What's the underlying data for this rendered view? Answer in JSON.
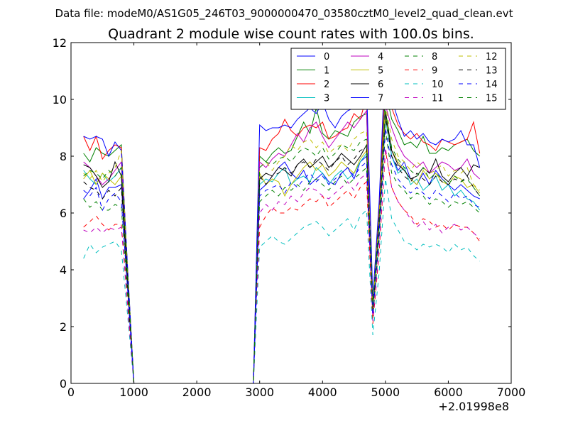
{
  "header": {
    "data_file": "Data file: modeM0/AS1G05_246T03_9000000470_03580cztM0_level2_quad_clean.evt"
  },
  "chart_data": {
    "type": "line",
    "title": "Quadrant 2 module wise count rates with 100.0s bins.",
    "xlabel": "",
    "ylabel": "",
    "x_offset_label": "+2.01998e8",
    "xlim": [
      0,
      7000
    ],
    "ylim": [
      0,
      12
    ],
    "xticks": [
      "0",
      "1000",
      "2000",
      "3000",
      "4000",
      "5000",
      "6000",
      "7000"
    ],
    "yticks": [
      "0",
      "2",
      "4",
      "6",
      "8",
      "10",
      "12"
    ],
    "grid": false,
    "legend_position": "top-right",
    "x": [
      200,
      300,
      400,
      500,
      600,
      700,
      800,
      900,
      1000,
      1100,
      1200,
      1300,
      1400,
      1500,
      1600,
      1700,
      1800,
      1900,
      2000,
      2100,
      2200,
      2300,
      2400,
      2500,
      2600,
      2700,
      2800,
      2900,
      3000,
      3100,
      3200,
      3300,
      3400,
      3500,
      3600,
      3700,
      3800,
      3900,
      4000,
      4100,
      4200,
      4300,
      4400,
      4500,
      4600,
      4700,
      4800,
      4900,
      5000,
      5100,
      5200,
      5300,
      5400,
      5500,
      5600,
      5700,
      5800,
      5900,
      6000,
      6100,
      6200,
      6300,
      6400,
      6500
    ],
    "series": [
      {
        "name": "0",
        "color": "#0000ff",
        "dash": "solid",
        "values": [
          6.5,
          6.8,
          7.2,
          6.5,
          6.9,
          6.9,
          7.0,
          3.5,
          0,
          0,
          0,
          0,
          0,
          0,
          0,
          0,
          0,
          0,
          0,
          0,
          0,
          0,
          0,
          0,
          0,
          0,
          0,
          0,
          6.8,
          7.0,
          7.3,
          7.6,
          7.8,
          7.4,
          7.2,
          7.5,
          7.0,
          7.2,
          7.4,
          7.1,
          7.0,
          7.4,
          7.6,
          7.2,
          7.8,
          8.0,
          2.6,
          5.5,
          9.5,
          8.0,
          7.5,
          7.8,
          7.2,
          7.0,
          7.4,
          7.0,
          7.5,
          7.2,
          7.0,
          6.8,
          7.0,
          6.8,
          6.6,
          6.5
        ]
      },
      {
        "name": "1",
        "color": "#008000",
        "dash": "solid",
        "values": [
          8.1,
          7.8,
          8.3,
          8.1,
          8.0,
          8.2,
          8.4,
          4.0,
          0,
          0,
          0,
          0,
          0,
          0,
          0,
          0,
          0,
          0,
          0,
          0,
          0,
          0,
          0,
          0,
          0,
          0,
          0,
          0,
          8.0,
          7.8,
          8.1,
          8.3,
          8.1,
          8.2,
          8.7,
          9.2,
          8.8,
          9.7,
          8.8,
          8.6,
          8.9,
          8.8,
          8.7,
          9.2,
          9.4,
          9.5,
          2.8,
          6.0,
          10.3,
          9.3,
          8.9,
          8.4,
          8.5,
          8.3,
          8.7,
          8.1,
          8.1,
          8.3,
          8.2,
          8.4,
          8.5,
          8.6,
          8.2,
          8.0
        ]
      },
      {
        "name": "2",
        "color": "#ff0000",
        "dash": "solid",
        "values": [
          8.7,
          8.2,
          8.7,
          7.9,
          8.2,
          8.4,
          8.3,
          4.0,
          0,
          0,
          0,
          0,
          0,
          0,
          0,
          0,
          0,
          0,
          0,
          0,
          0,
          0,
          0,
          0,
          0,
          0,
          0,
          0,
          8.3,
          8.2,
          8.6,
          8.8,
          9.3,
          8.9,
          8.7,
          9.0,
          9.1,
          9.0,
          9.2,
          8.6,
          8.7,
          8.9,
          9.0,
          9.5,
          9.3,
          10.1,
          2.9,
          6.2,
          11.0,
          9.7,
          9.1,
          8.8,
          8.6,
          8.8,
          8.5,
          8.4,
          8.2,
          8.6,
          8.5,
          8.4,
          8.5,
          8.6,
          9.2,
          8.1
        ]
      },
      {
        "name": "3",
        "color": "#00bfbf",
        "dash": "solid",
        "values": [
          7.5,
          7.2,
          7.0,
          7.4,
          7.1,
          7.3,
          7.6,
          3.7,
          0,
          0,
          0,
          0,
          0,
          0,
          0,
          0,
          0,
          0,
          0,
          0,
          0,
          0,
          0,
          0,
          0,
          0,
          0,
          0,
          7.0,
          7.2,
          7.1,
          7.4,
          7.6,
          7.0,
          7.2,
          7.3,
          7.1,
          7.6,
          7.4,
          7.0,
          7.3,
          7.5,
          7.2,
          7.4,
          7.8,
          8.1,
          2.5,
          5.4,
          9.3,
          8.0,
          7.4,
          7.6,
          7.0,
          7.2,
          6.8,
          7.0,
          7.3,
          6.8,
          7.0,
          6.6,
          6.8,
          6.5,
          6.4,
          6.1
        ]
      },
      {
        "name": "4",
        "color": "#bf00bf",
        "dash": "solid",
        "values": [
          7.8,
          7.6,
          7.3,
          7.0,
          7.2,
          7.5,
          7.8,
          3.8,
          0,
          0,
          0,
          0,
          0,
          0,
          0,
          0,
          0,
          0,
          0,
          0,
          0,
          0,
          0,
          0,
          0,
          0,
          0,
          0,
          7.8,
          7.6,
          7.9,
          8.1,
          8.0,
          8.4,
          8.8,
          8.5,
          9.0,
          9.2,
          8.7,
          8.3,
          8.6,
          8.9,
          9.2,
          9.0,
          9.3,
          9.6,
          2.7,
          5.8,
          9.8,
          9.0,
          8.4,
          8.0,
          7.8,
          7.6,
          7.8,
          7.4,
          7.6,
          7.8,
          7.7,
          7.5,
          7.6,
          7.9,
          7.4,
          7.2
        ]
      },
      {
        "name": "5",
        "color": "#bfbf00",
        "dash": "solid",
        "values": [
          7.2,
          7.5,
          7.0,
          7.4,
          7.2,
          7.0,
          7.3,
          3.6,
          0,
          0,
          0,
          0,
          0,
          0,
          0,
          0,
          0,
          0,
          0,
          0,
          0,
          0,
          0,
          0,
          0,
          0,
          0,
          0,
          7.4,
          7.0,
          7.2,
          7.1,
          6.6,
          7.0,
          7.3,
          7.6,
          7.8,
          7.5,
          7.7,
          7.3,
          7.5,
          7.8,
          7.6,
          7.4,
          7.9,
          8.2,
          2.6,
          5.6,
          9.4,
          8.2,
          7.8,
          7.5,
          7.2,
          7.0,
          7.5,
          7.2,
          7.4,
          7.1,
          7.0,
          7.3,
          7.2,
          6.9,
          7.0,
          6.7
        ]
      },
      {
        "name": "6",
        "color": "#000000",
        "dash": "solid",
        "values": [
          7.7,
          7.6,
          7.3,
          6.9,
          7.1,
          7.8,
          7.3,
          3.7,
          0,
          0,
          0,
          0,
          0,
          0,
          0,
          0,
          0,
          0,
          0,
          0,
          0,
          0,
          0,
          0,
          0,
          0,
          0,
          0,
          7.2,
          7.4,
          7.3,
          7.6,
          7.5,
          7.3,
          7.7,
          7.9,
          7.6,
          7.8,
          8.0,
          7.6,
          7.8,
          8.1,
          7.9,
          7.7,
          8.0,
          8.4,
          2.6,
          5.7,
          9.6,
          8.2,
          7.7,
          7.5,
          7.2,
          7.3,
          7.6,
          7.4,
          7.9,
          7.3,
          7.1,
          7.4,
          7.6,
          7.3,
          7.7,
          7.6
        ]
      },
      {
        "name": "7",
        "color": "#0000ff",
        "dash": "solid",
        "values": [
          8.7,
          8.6,
          8.7,
          8.6,
          8.0,
          8.5,
          8.2,
          4.1,
          0,
          0,
          0,
          0,
          0,
          0,
          0,
          0,
          0,
          0,
          0,
          0,
          0,
          0,
          0,
          0,
          0,
          0,
          0,
          0,
          9.1,
          8.9,
          9.0,
          9.0,
          9.1,
          9.0,
          9.3,
          9.5,
          9.7,
          9.5,
          9.9,
          9.3,
          9.0,
          9.4,
          9.6,
          9.7,
          10.0,
          10.5,
          3.0,
          6.4,
          11.6,
          10.0,
          9.3,
          8.7,
          8.9,
          8.6,
          8.8,
          8.5,
          8.4,
          8.6,
          8.5,
          8.6,
          8.9,
          8.4,
          8.4,
          7.6
        ]
      },
      {
        "name": "8",
        "color": "#008000",
        "dash": "dashed",
        "values": [
          6.5,
          6.2,
          6.4,
          6.1,
          6.1,
          6.3,
          6.2,
          3.1,
          0,
          0,
          0,
          0,
          0,
          0,
          0,
          0,
          0,
          0,
          0,
          0,
          0,
          0,
          0,
          0,
          0,
          0,
          0,
          0,
          6.4,
          6.6,
          6.8,
          6.6,
          6.9,
          6.8,
          7.0,
          6.8,
          7.1,
          7.2,
          7.0,
          6.8,
          7.1,
          7.3,
          7.0,
          7.2,
          7.4,
          7.6,
          2.3,
          5.0,
          8.9,
          7.4,
          7.0,
          6.8,
          6.5,
          6.7,
          6.6,
          6.3,
          6.5,
          6.4,
          6.2,
          6.4,
          6.3,
          6.4,
          6.2,
          6.0
        ]
      },
      {
        "name": "9",
        "color": "#ff0000",
        "dash": "dashed",
        "values": [
          5.5,
          5.7,
          5.9,
          5.6,
          5.4,
          5.6,
          5.6,
          2.8,
          0,
          0,
          0,
          0,
          0,
          0,
          0,
          0,
          0,
          0,
          0,
          0,
          0,
          0,
          0,
          0,
          0,
          0,
          0,
          0,
          5.5,
          5.9,
          6.2,
          6.0,
          6.0,
          6.2,
          6.1,
          6.3,
          6.5,
          6.4,
          6.6,
          6.2,
          6.4,
          6.6,
          6.8,
          6.5,
          6.9,
          7.1,
          2.1,
          4.6,
          8.2,
          6.9,
          6.4,
          6.1,
          5.9,
          5.6,
          5.8,
          5.7,
          5.5,
          5.6,
          5.4,
          5.6,
          5.5,
          5.5,
          5.3,
          5.0
        ]
      },
      {
        "name": "10",
        "color": "#00bfbf",
        "dash": "dashed",
        "values": [
          4.4,
          4.9,
          4.6,
          4.8,
          4.9,
          5.0,
          4.7,
          2.4,
          0,
          0,
          0,
          0,
          0,
          0,
          0,
          0,
          0,
          0,
          0,
          0,
          0,
          0,
          0,
          0,
          0,
          0,
          0,
          0,
          4.8,
          5.0,
          5.2,
          5.0,
          4.9,
          5.1,
          5.3,
          5.5,
          5.6,
          5.7,
          5.5,
          5.2,
          5.4,
          5.6,
          5.8,
          5.4,
          5.9,
          6.1,
          1.7,
          3.9,
          7.2,
          5.8,
          5.4,
          5.0,
          4.9,
          4.7,
          4.9,
          4.8,
          4.9,
          4.8,
          4.6,
          4.9,
          4.7,
          4.8,
          4.5,
          4.3
        ]
      },
      {
        "name": "11",
        "color": "#bf00bf",
        "dash": "dashed",
        "values": [
          5.4,
          5.3,
          5.5,
          5.3,
          5.5,
          5.4,
          5.5,
          2.7,
          0,
          0,
          0,
          0,
          0,
          0,
          0,
          0,
          0,
          0,
          0,
          0,
          0,
          0,
          0,
          0,
          0,
          0,
          0,
          0,
          6.0,
          6.3,
          6.1,
          6.4,
          6.3,
          6.6,
          6.4,
          6.7,
          6.9,
          6.8,
          6.6,
          6.5,
          6.7,
          6.9,
          7.1,
          6.8,
          7.2,
          7.4,
          2.2,
          4.8,
          8.3,
          6.9,
          6.4,
          6.1,
          5.8,
          5.5,
          5.7,
          5.4,
          5.6,
          5.3,
          5.5,
          5.6,
          5.4,
          5.5,
          5.3,
          5.1
        ]
      },
      {
        "name": "12",
        "color": "#bfbf00",
        "dash": "dashed",
        "values": [
          7.4,
          7.2,
          7.5,
          7.1,
          7.4,
          7.6,
          8.2,
          4.0,
          0,
          0,
          0,
          0,
          0,
          0,
          0,
          0,
          0,
          0,
          0,
          0,
          0,
          0,
          0,
          0,
          0,
          0,
          0,
          0,
          7.6,
          7.8,
          7.5,
          7.8,
          8.0,
          8.4,
          8.2,
          8.5,
          8.6,
          8.3,
          8.5,
          8.1,
          8.3,
          8.4,
          8.2,
          8.6,
          8.8,
          8.9,
          2.7,
          5.9,
          9.8,
          8.6,
          8.0,
          7.8,
          7.5,
          7.8,
          7.6,
          7.4,
          7.5,
          7.7,
          7.3,
          7.5,
          7.4,
          7.6,
          7.0,
          6.8
        ]
      },
      {
        "name": "13",
        "color": "#000000",
        "dash": "dashed",
        "values": [
          7.1,
          6.9,
          6.8,
          6.5,
          6.8,
          6.6,
          6.9,
          3.4,
          0,
          0,
          0,
          0,
          0,
          0,
          0,
          0,
          0,
          0,
          0,
          0,
          0,
          0,
          0,
          0,
          0,
          0,
          0,
          0,
          7.3,
          7.0,
          7.3,
          7.4,
          7.6,
          7.4,
          7.7,
          7.8,
          7.6,
          7.9,
          7.7,
          7.5,
          7.8,
          8.0,
          7.7,
          7.9,
          8.2,
          8.3,
          2.5,
          5.6,
          9.4,
          8.0,
          7.6,
          7.3,
          7.1,
          7.4,
          7.2,
          7.0,
          7.3,
          7.1,
          7.0,
          7.2,
          7.1,
          7.3,
          6.9,
          6.6
        ]
      },
      {
        "name": "14",
        "color": "#0000ff",
        "dash": "dashed",
        "values": [
          6.8,
          6.6,
          6.9,
          6.1,
          6.5,
          6.7,
          6.4,
          3.3,
          0,
          0,
          0,
          0,
          0,
          0,
          0,
          0,
          0,
          0,
          0,
          0,
          0,
          0,
          0,
          0,
          0,
          0,
          0,
          0,
          6.6,
          6.8,
          6.9,
          7.0,
          6.7,
          7.1,
          6.9,
          7.2,
          7.4,
          7.1,
          7.3,
          7.0,
          7.2,
          7.4,
          7.6,
          7.3,
          7.6,
          7.8,
          2.4,
          5.3,
          9.0,
          7.7,
          7.2,
          6.9,
          6.7,
          6.9,
          6.7,
          6.5,
          6.8,
          6.6,
          6.4,
          6.7,
          6.5,
          6.6,
          6.3,
          6.2
        ]
      },
      {
        "name": "15",
        "color": "#008000",
        "dash": "dashed",
        "values": [
          7.3,
          7.5,
          7.4,
          7.2,
          7.5,
          7.3,
          7.6,
          3.8,
          0,
          0,
          0,
          0,
          0,
          0,
          0,
          0,
          0,
          0,
          0,
          0,
          0,
          0,
          0,
          0,
          0,
          0,
          0,
          0,
          7.6,
          7.8,
          7.7,
          7.9,
          8.0,
          7.8,
          8.1,
          8.3,
          8.2,
          8.0,
          8.3,
          7.9,
          8.1,
          8.4,
          8.3,
          8.2,
          8.5,
          8.6,
          2.7,
          5.8,
          9.6,
          8.3,
          7.9,
          7.6,
          7.5,
          7.3,
          7.6,
          7.2,
          7.4,
          7.2,
          7.0,
          7.3,
          7.1,
          7.2,
          6.9,
          6.6
        ]
      }
    ]
  }
}
